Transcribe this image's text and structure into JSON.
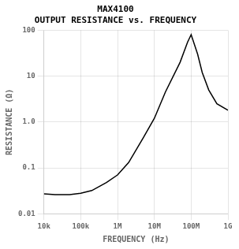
{
  "chart_data": {
    "type": "line",
    "title": "MAX4100",
    "subtitle": "OUTPUT RESISTANCE vs. FREQUENCY",
    "x_label": "FREQUENCY (Hz)",
    "y_label": "RESISTANCE (Ω)",
    "x": [
      10000,
      20000,
      50000,
      100000,
      200000,
      500000,
      1000000,
      2000000,
      5000000,
      10000000,
      20000000,
      50000000,
      80000000,
      100000000,
      150000000,
      200000000,
      300000000,
      500000000,
      1000000000
    ],
    "values": [
      0.027,
      0.026,
      0.026,
      0.028,
      0.032,
      0.048,
      0.07,
      0.13,
      0.45,
      1.2,
      4.5,
      20.0,
      55.0,
      80.0,
      30.0,
      12.0,
      5.0,
      2.5,
      1.8
    ],
    "color": "#000000",
    "log": true,
    "grid": true,
    "xlim": [
      10000,
      1000000000
    ],
    "ylim": [
      0.01,
      100
    ],
    "xticks": [
      {
        "value": 10000,
        "label": "10k"
      },
      {
        "value": 100000,
        "label": "100k"
      },
      {
        "value": 1000000,
        "label": "1M"
      },
      {
        "value": 10000000,
        "label": "10M"
      },
      {
        "value": 100000000,
        "label": "100M"
      },
      {
        "value": 1000000000,
        "label": "1G"
      }
    ],
    "yticks": [
      0.01,
      0.1,
      {
        "value": 1.0,
        "label": "1.0"
      },
      10,
      100
    ]
  }
}
